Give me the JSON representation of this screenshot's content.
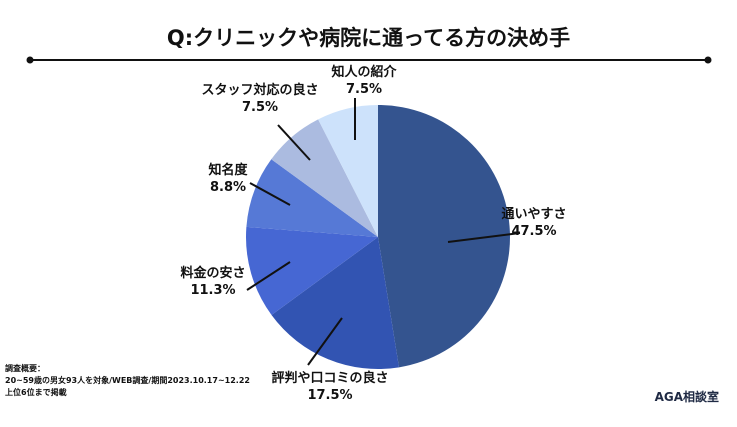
{
  "title": "Q:クリニックや病院に通ってる方の決め手",
  "chart_data": {
    "type": "pie",
    "title": "Q:クリニックや病院に通ってる方の決め手",
    "start": "top",
    "direction": "clockwise",
    "slices": [
      {
        "label": "通いやすさ",
        "value": 47.5,
        "value_label": "47.5%",
        "color": "#34548f"
      },
      {
        "label": "評判や口コミの良さ",
        "value": 17.5,
        "value_label": "17.5%",
        "color": "#3254b2"
      },
      {
        "label": "料金の安さ",
        "value": 11.3,
        "value_label": "11.3%",
        "color": "#4667d3"
      },
      {
        "label": "知名度",
        "value": 8.8,
        "value_label": "8.8%",
        "color": "#5679d6"
      },
      {
        "label": "スタッフ対応の良さ",
        "value": 7.5,
        "value_label": "7.5%",
        "color": "#abbbe0"
      },
      {
        "label": "知人の紹介",
        "value": 7.5,
        "value_label": "7.5%",
        "color": "#cde2fb"
      }
    ]
  },
  "note": {
    "line1": "調査概要：",
    "line2": "20~59歳の男女93人を対象/WEB調査/期間2023.10.17~12.22",
    "line3": "上位6位まで掲載"
  },
  "logo": "AGA相談室"
}
